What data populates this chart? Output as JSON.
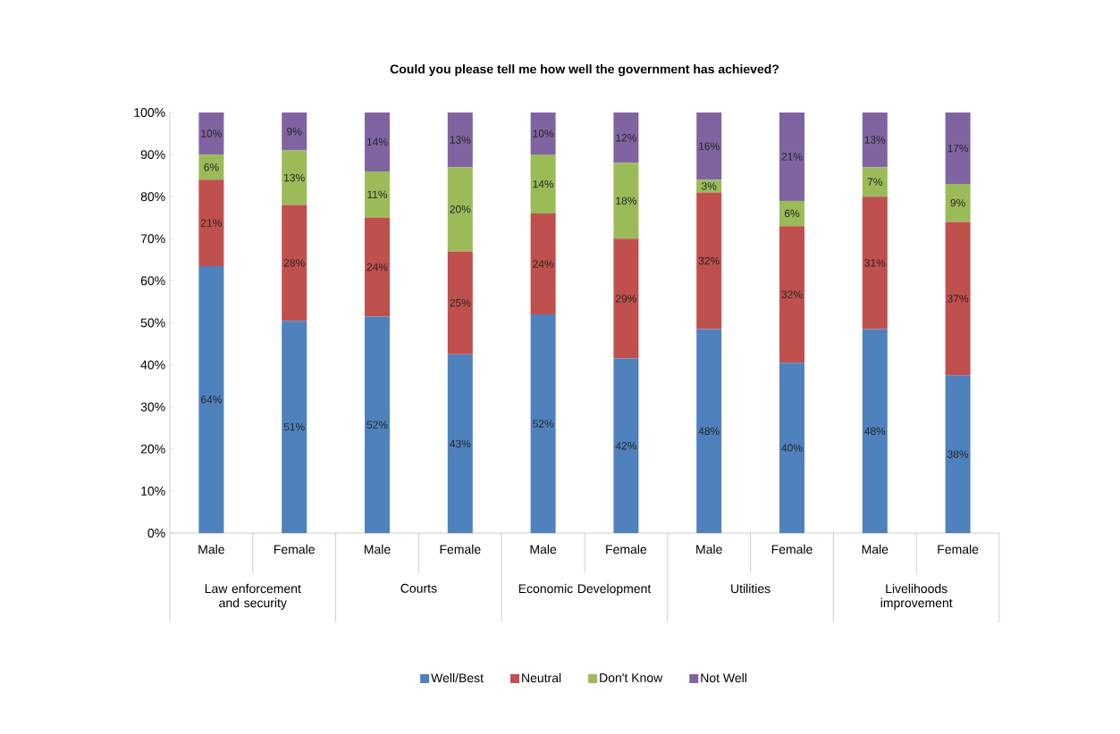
{
  "chart_data": {
    "type": "bar",
    "stacked": true,
    "title": "Could you please tell me how well the government has achieved?",
    "categories": [
      "Male",
      "Female",
      "Male",
      "Female",
      "Male",
      "Female",
      "Male",
      "Female",
      "Male",
      "Female"
    ],
    "annotations": [
      "Law enforcement and security",
      "Courts",
      "Economic Development",
      "Utilities",
      "Livelihoods improvement"
    ],
    "series": [
      {
        "name": "Well/Best",
        "color": "#4f81bd",
        "values": [
          63.5,
          50.5,
          51.5,
          42.5,
          52,
          41.5,
          48.5,
          40.5,
          48.5,
          37.5
        ],
        "value_labels": [
          "64%",
          "51%",
          "52%",
          "43%",
          "52%",
          "42%",
          "48%",
          "40%",
          "48%",
          "38%"
        ]
      },
      {
        "name": "Neutral",
        "color": "#c0504d",
        "values": [
          20.5,
          27.5,
          23.5,
          24.5,
          24,
          28.5,
          32.5,
          32.5,
          31.5,
          36.5
        ],
        "value_labels": [
          "21%",
          "28%",
          "24%",
          "25%",
          "24%",
          "29%",
          "32%",
          "32%",
          "31%",
          "37%"
        ]
      },
      {
        "name": "Don't Know",
        "color": "#9bbb59",
        "values": [
          6,
          13,
          11,
          20,
          14,
          18,
          3,
          6,
          7,
          9
        ],
        "value_labels": [
          "6%",
          "13%",
          "11%",
          "20%",
          "14%",
          "18%",
          "3%",
          "6%",
          "7%",
          "9%"
        ]
      },
      {
        "name": "Not Well",
        "color": "#8064a2",
        "values": [
          10,
          9,
          14,
          13,
          10,
          12,
          16,
          21,
          13,
          17
        ],
        "value_labels": [
          "10%",
          "9%",
          "14%",
          "13%",
          "10%",
          "12%",
          "16%",
          "21%",
          "13%",
          "17%"
        ]
      }
    ],
    "ylim": [
      0,
      100
    ],
    "yticks": [
      {
        "value": 0,
        "label": "0%"
      },
      {
        "value": 10,
        "label": "10%"
      },
      {
        "value": 20,
        "label": "20%"
      },
      {
        "value": 30,
        "label": "30%"
      },
      {
        "value": 40,
        "label": "40%"
      },
      {
        "value": 50,
        "label": "50%"
      },
      {
        "value": 60,
        "label": "60%"
      },
      {
        "value": 70,
        "label": "70%"
      },
      {
        "value": 80,
        "label": "80%"
      },
      {
        "value": 90,
        "label": "90%"
      },
      {
        "value": 100,
        "label": "100%"
      }
    ],
    "grid": false,
    "legend": "bottom"
  }
}
